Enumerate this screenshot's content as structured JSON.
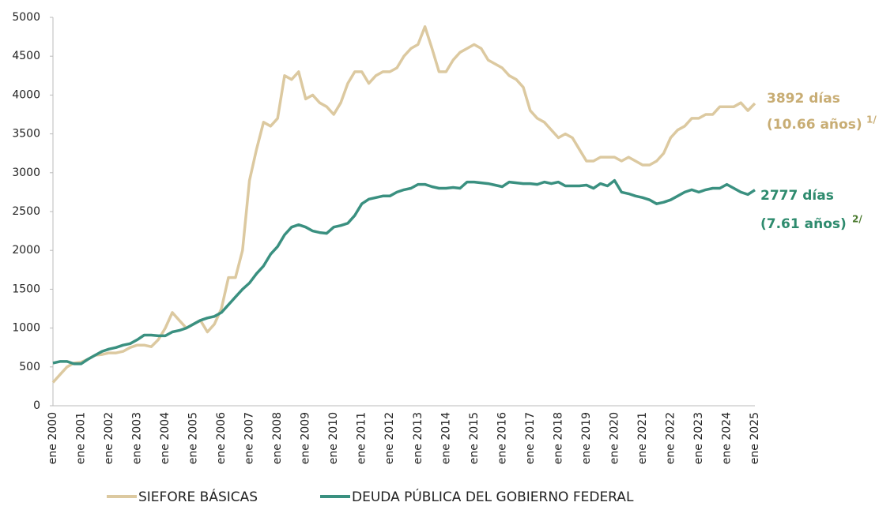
{
  "chart_data": {
    "type": "line",
    "categories": [
      "ene 2000",
      null,
      null,
      null,
      "ene 2001",
      null,
      null,
      null,
      "ene 2002",
      null,
      null,
      null,
      "ene 2003",
      null,
      null,
      null,
      "ene 2004",
      null,
      null,
      null,
      "ene 2005",
      null,
      null,
      null,
      "ene 2006",
      null,
      null,
      null,
      "ene 2007",
      null,
      null,
      null,
      "ene 2008",
      null,
      null,
      null,
      "ene 2009",
      null,
      null,
      null,
      "ene 2010",
      null,
      null,
      null,
      "ene 2011",
      null,
      null,
      null,
      "ene 2012",
      null,
      null,
      null,
      "ene 2013",
      null,
      null,
      null,
      "ene 2014",
      null,
      null,
      null,
      "ene 2015",
      null,
      null,
      null,
      "ene 2016",
      null,
      null,
      null,
      "ene 2017",
      null,
      null,
      null,
      "ene 2018",
      null,
      null,
      null,
      "ene 2019",
      null,
      null,
      null,
      "ene 2020",
      null,
      null,
      null,
      "ene 2021",
      null,
      null,
      null,
      "ene 2022",
      null,
      null,
      null,
      "ene 2023",
      null,
      null,
      null,
      "ene 2024",
      null,
      null,
      null,
      "ene 2025"
    ],
    "series": [
      {
        "name": "SIEFORE BÁSICAS",
        "color": "#dcc9a0",
        "values": [
          300,
          400,
          500,
          550,
          560,
          600,
          650,
          660,
          680,
          680,
          700,
          750,
          780,
          780,
          760,
          850,
          1000,
          1200,
          1100,
          1000,
          1050,
          1100,
          950,
          1050,
          1250,
          1650,
          1650,
          2000,
          2900,
          3300,
          3650,
          3600,
          3700,
          4250,
          4200,
          4300,
          3950,
          4000,
          3900,
          3850,
          3750,
          3900,
          4150,
          4300,
          4300,
          4150,
          4250,
          4300,
          4300,
          4350,
          4500,
          4600,
          4650,
          4880,
          4600,
          4300,
          4300,
          4450,
          4550,
          4600,
          4650,
          4600,
          4450,
          4400,
          4350,
          4250,
          4200,
          4100,
          3800,
          3700,
          3650,
          3550,
          3450,
          3500,
          3450,
          3300,
          3150,
          3150,
          3200,
          3200,
          3200,
          3150,
          3200,
          3150,
          3100,
          3100,
          3150,
          3250,
          3450,
          3550,
          3600,
          3700,
          3700,
          3750,
          3750,
          3850,
          3850,
          3850,
          3900,
          3800,
          3892
        ]
      },
      {
        "name": "DEUDA PÚBLICA DEL GOBIERNO FEDERAL",
        "color": "#3a9080",
        "values": [
          550,
          570,
          570,
          540,
          540,
          600,
          650,
          700,
          730,
          750,
          780,
          800,
          850,
          910,
          910,
          900,
          900,
          950,
          970,
          1000,
          1050,
          1100,
          1130,
          1150,
          1200,
          1300,
          1400,
          1500,
          1580,
          1700,
          1800,
          1950,
          2050,
          2200,
          2300,
          2330,
          2300,
          2250,
          2230,
          2220,
          2300,
          2320,
          2350,
          2450,
          2600,
          2660,
          2680,
          2700,
          2700,
          2750,
          2780,
          2800,
          2850,
          2850,
          2820,
          2800,
          2800,
          2810,
          2800,
          2880,
          2880,
          2870,
          2860,
          2840,
          2820,
          2880,
          2870,
          2860,
          2860,
          2850,
          2880,
          2860,
          2880,
          2830,
          2830,
          2830,
          2840,
          2800,
          2860,
          2830,
          2900,
          2750,
          2730,
          2700,
          2680,
          2650,
          2600,
          2620,
          2650,
          2700,
          2750,
          2780,
          2750,
          2780,
          2800,
          2800,
          2850,
          2800,
          2750,
          2720,
          2777
        ]
      }
    ],
    "annotations": [
      "3892 días",
      "(10.66 años)",
      "1/",
      "2777 días",
      "(7.61 años)",
      "2/"
    ],
    "ylim": [
      0,
      5000
    ],
    "yticks": [
      0,
      500,
      1000,
      1500,
      2000,
      2500,
      3000,
      3500,
      4000,
      4500,
      5000
    ],
    "grid": false,
    "legend": "bottom"
  }
}
